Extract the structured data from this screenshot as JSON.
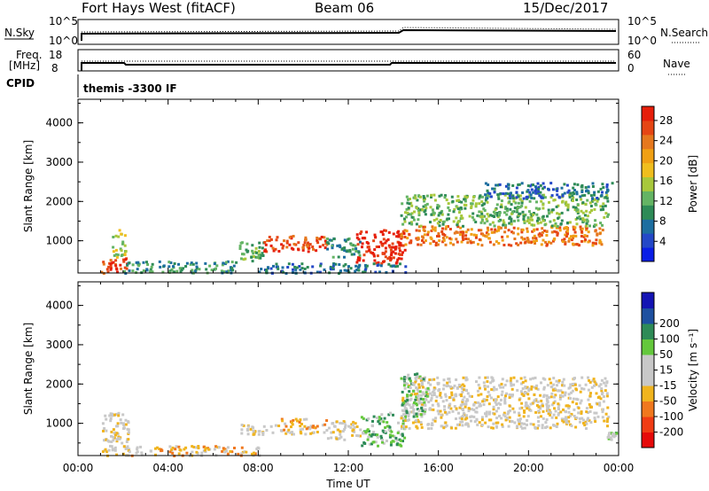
{
  "header": {
    "title": "Fort Hays West (fitACF)",
    "beam": "Beam 06",
    "date": "15/Dec/2017"
  },
  "summary": {
    "nsky_label": "N.Sky",
    "nsky_ticks": [
      "10^5",
      "10^0"
    ],
    "nsearch_label": "N.Search",
    "nsearch_ticks": [
      "10^5",
      "10^0"
    ],
    "freq_label": [
      "Freq.",
      "[MHz]"
    ],
    "freq_ticks": [
      "18",
      "8"
    ],
    "nave_label": "Nave",
    "nave_ticks": [
      "60",
      "0"
    ],
    "cpid_label": "CPID",
    "cpid_value": "themis -3300 IF"
  },
  "chart_data": [
    {
      "type": "heatmap",
      "name": "power-panel",
      "ylabel": "Slant Range [km]",
      "ylim": [
        180,
        4600
      ],
      "yticks": [
        {
          "v": 1000,
          "t": "1000"
        },
        {
          "v": 2000,
          "t": "2000"
        },
        {
          "v": 3000,
          "t": "3000"
        },
        {
          "v": 4000,
          "t": "4000"
        }
      ],
      "xlim": [
        0,
        24
      ],
      "colorbar": {
        "label": "Power [dB]",
        "colors": [
          "#0a1ee6",
          "#2448c8",
          "#1d6ea0",
          "#2e8b57",
          "#64b464",
          "#a8c83c",
          "#f0be1e",
          "#f0a014",
          "#e6781e",
          "#e64614",
          "#e61e0a"
        ],
        "ticks": [
          "4",
          "8",
          "12",
          "16",
          "20",
          "24",
          "28"
        ]
      },
      "blobs": [
        {
          "t0": 1.0,
          "t1": 2.2,
          "r0": 200,
          "r1": 600,
          "level": 9
        },
        {
          "t0": 1.5,
          "t1": 2.1,
          "r0": 600,
          "r1": 1300,
          "level": 5
        },
        {
          "t0": 2.0,
          "t1": 7.0,
          "r0": 200,
          "r1": 500,
          "level": 3
        },
        {
          "t0": 7.0,
          "t1": 8.2,
          "r0": 500,
          "r1": 1000,
          "level": 4
        },
        {
          "t0": 8.2,
          "t1": 11.0,
          "r0": 750,
          "r1": 1150,
          "level": 9
        },
        {
          "t0": 11.0,
          "t1": 12.5,
          "r0": 600,
          "r1": 1100,
          "level": 3
        },
        {
          "t0": 12.3,
          "t1": 14.5,
          "r0": 450,
          "r1": 1300,
          "level": 10
        },
        {
          "t0": 14.3,
          "t1": 23.3,
          "r0": 900,
          "r1": 1400,
          "level": 8
        },
        {
          "t0": 14.3,
          "t1": 23.5,
          "r0": 1400,
          "r1": 2200,
          "level": 4
        },
        {
          "t0": 18.0,
          "t1": 23.8,
          "r0": 2100,
          "r1": 2500,
          "level": 2
        },
        {
          "t0": 8.0,
          "t1": 14.5,
          "r0": 200,
          "r1": 450,
          "level": 2
        }
      ]
    },
    {
      "type": "heatmap",
      "name": "velocity-panel",
      "ylabel": "Slant Range [km]",
      "xlabel": "Time UT",
      "ylim": [
        180,
        4600
      ],
      "yticks": [
        {
          "v": 1000,
          "t": "1000"
        },
        {
          "v": 2000,
          "t": "2000"
        },
        {
          "v": 3000,
          "t": "3000"
        },
        {
          "v": 4000,
          "t": "4000"
        }
      ],
      "xlim": [
        0,
        24
      ],
      "xticks": [
        {
          "v": 0,
          "t": "00:00"
        },
        {
          "v": 4,
          "t": "04:00"
        },
        {
          "v": 8,
          "t": "08:00"
        },
        {
          "v": 12,
          "t": "12:00"
        },
        {
          "v": 16,
          "t": "16:00"
        },
        {
          "v": 20,
          "t": "20:00"
        },
        {
          "v": 24,
          "t": "00:00"
        }
      ],
      "colorbar": {
        "label": "Velocity [m s⁻¹]",
        "colors": [
          "#e60a0a",
          "#f03c14",
          "#f0781e",
          "#f0b41e",
          "#c8c8c8",
          "#c8c8c8",
          "#64c83c",
          "#2e8b57",
          "#1e50a0",
          "#1414b4"
        ],
        "ticks": [
          "-200",
          "-100",
          "-50",
          "-15",
          "15",
          "50",
          "100",
          "200"
        ]
      },
      "blobs": [
        {
          "t0": 1.0,
          "t1": 2.2,
          "r0": 200,
          "r1": 1300,
          "level": 4
        },
        {
          "t0": 2.0,
          "t1": 8.0,
          "r0": 200,
          "r1": 450,
          "level": 3
        },
        {
          "t0": 7.2,
          "t1": 9.0,
          "r0": 700,
          "r1": 1000,
          "level": 4
        },
        {
          "t0": 9.0,
          "t1": 11.0,
          "r0": 750,
          "r1": 1150,
          "level": 3
        },
        {
          "t0": 11.0,
          "t1": 12.5,
          "r0": 600,
          "r1": 1100,
          "level": 4
        },
        {
          "t0": 12.5,
          "t1": 14.5,
          "r0": 450,
          "r1": 1300,
          "level": 6
        },
        {
          "t0": 14.3,
          "t1": 23.5,
          "r0": 900,
          "r1": 2200,
          "level": 4
        },
        {
          "t0": 14.3,
          "t1": 15.5,
          "r0": 1200,
          "r1": 2300,
          "level": 6
        },
        {
          "t0": 23.4,
          "t1": 23.9,
          "r0": 600,
          "r1": 800,
          "level": 6
        }
      ]
    }
  ]
}
